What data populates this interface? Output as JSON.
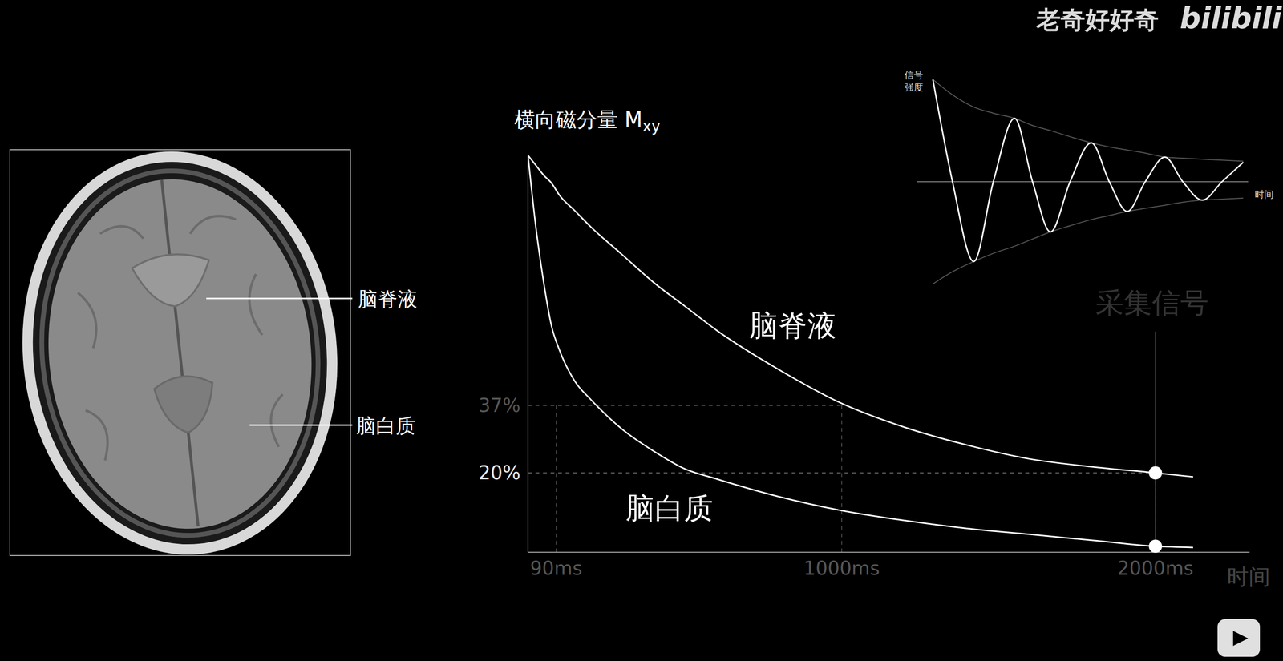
{
  "watermark": {
    "channel": "老奇好好奇",
    "site": "bilibili"
  },
  "image": {
    "labels": [
      "脑脊液",
      "脑白质"
    ]
  },
  "chart_data": [
    {
      "type": "line",
      "title": "横向磁分量 M",
      "title_subscript": "xy",
      "x_label": "时间",
      "x": [
        0,
        25,
        50,
        75,
        100,
        150,
        200,
        300,
        400,
        500,
        600,
        800,
        1000,
        1200,
        1400,
        1600,
        1800,
        2000,
        2120
      ],
      "series": [
        {
          "name": "脑脊液",
          "color": "#ffffff",
          "values": [
            100,
            97.5,
            95,
            93,
            90,
            86,
            82,
            75,
            68,
            62,
            56,
            46,
            37.5,
            31.5,
            27,
            23.5,
            21.5,
            20,
            19
          ]
        },
        {
          "name": "脑白质",
          "color": "#ffffff",
          "values": [
            100,
            82,
            68,
            57,
            51,
            43,
            38.5,
            31,
            25.5,
            21,
            18.5,
            14,
            10.5,
            8,
            6,
            4.5,
            3,
            1.5,
            1.2
          ]
        }
      ],
      "xlim": [
        0,
        2300
      ],
      "ylim": [
        0,
        100
      ],
      "xticks": [
        {
          "value": 90,
          "label": "90ms"
        },
        {
          "value": 1000,
          "label": "1000ms"
        },
        {
          "value": 2000,
          "label": "2000ms"
        }
      ],
      "yticks": [
        {
          "value": 20,
          "label": "20%"
        },
        {
          "value": 37,
          "label": "37%"
        }
      ],
      "guides": [
        {
          "x": 90,
          "y": 37
        },
        {
          "x": 1000,
          "y": 37
        },
        {
          "x": 2000,
          "y": 20
        }
      ],
      "grid": false
    },
    {
      "type": "line",
      "y_label": [
        "信号",
        "强度"
      ],
      "x_label": "时间",
      "caption": "采集信号",
      "tick_labels": false,
      "x": [
        0,
        12,
        25,
        37,
        50,
        61,
        72,
        84,
        97,
        108,
        119,
        130,
        142,
        153,
        165,
        177,
        190
      ],
      "values": [
        100,
        0,
        -78,
        0,
        62,
        0,
        -49,
        0,
        38,
        0,
        -29,
        0,
        24,
        0,
        -18,
        0,
        19
      ],
      "envelope": {
        "upper": [
          100,
          85,
          73,
          67,
          62,
          55,
          50,
          44,
          38,
          34,
          31,
          28,
          24,
          23,
          22,
          21,
          20
        ],
        "lower": [
          -100,
          -88,
          -78,
          -70,
          -63,
          -56,
          -49,
          -43,
          -37,
          -33,
          -29,
          -26,
          -23,
          -20,
          -18,
          -17,
          -16
        ]
      },
      "xlim": [
        -10,
        193
      ],
      "ylim": [
        -110,
        110
      ],
      "yticks": [
        0
      ],
      "grid": false
    }
  ]
}
